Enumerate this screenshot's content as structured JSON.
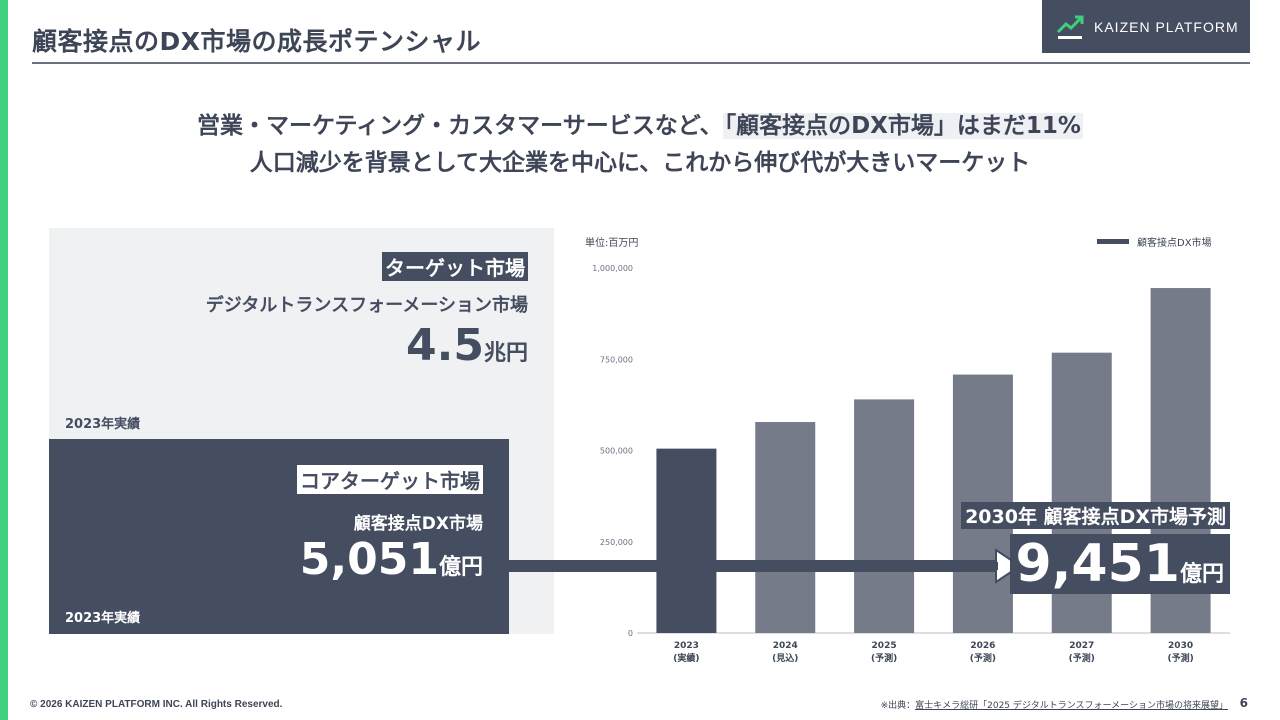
{
  "slide": {
    "title": "顧客接点のDX市場の成長ポテンシャル",
    "logo_text": "KAIZEN PLATFORM",
    "headline_line1_prefix": "営業・マーケティング・カスタマーサービスなど、",
    "headline_line1_highlight": "「顧客接点のDX市場」はまだ11%",
    "headline_line2": "人口減少を背景として大企業を中心に、これから伸び代が大きいマーケット"
  },
  "target_market": {
    "tag": "ターゲット市場",
    "subtitle": "デジタルトランスフォーメーション市場",
    "value": "4.5",
    "unit": "兆円",
    "year_note": "2023年実績"
  },
  "core_market": {
    "tag": "コアターゲット市場",
    "subtitle": "顧客接点DX市場",
    "value": "5,051",
    "unit": "億円",
    "year_note": "2023年実績"
  },
  "forecast": {
    "tag": "2030年 顧客接点DX市場予測",
    "value": "9,451",
    "unit": "億円"
  },
  "chart_data": {
    "type": "bar",
    "unit_label": "単位:百万円",
    "legend": "顧客接点DX市場",
    "legend_position": "top-right",
    "categories": [
      "2023",
      "2024",
      "2025",
      "2026",
      "2027",
      "2030"
    ],
    "category_notes": [
      "(実績)",
      "(見込)",
      "(予測)",
      "(予測)",
      "(予測)",
      "(予測)"
    ],
    "values": [
      505100,
      578000,
      640000,
      708000,
      768000,
      945100
    ],
    "yticks": [
      "0",
      "250,000",
      "500,000",
      "750,000",
      "1,000,000"
    ],
    "ylim": [
      0,
      1000000
    ],
    "colors": {
      "actual": "#454d60",
      "forecast": "#757b89"
    }
  },
  "footer": {
    "copyright": "© 2026 KAIZEN PLATFORM INC. All Rights Reserved.",
    "source_prefix": "※出典：",
    "source_link": "富士キメラ総研「2025 デジタルトランスフォーメーション市場の将来展望」",
    "page_number": "6"
  }
}
